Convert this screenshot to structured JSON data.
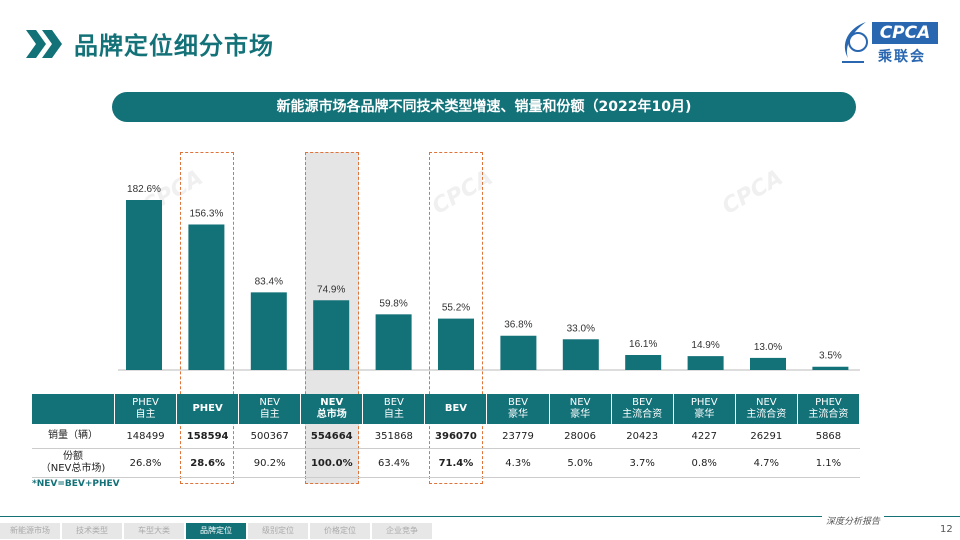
{
  "page": {
    "title": "品牌定位细分市场",
    "page_number": "12",
    "tagline": "深度分析报告"
  },
  "logo": {
    "en": "CPCA",
    "cn": "乘联会"
  },
  "subtitle": "新能源市场各品牌不同技术类型增速、销量和份额（2022年10月)",
  "colors": {
    "accent": "#137178",
    "highlight_border": "#e0733a",
    "logo_blue": "#2a67b1"
  },
  "chart_data": {
    "type": "bar",
    "title": "新能源市场各品牌不同技术类型增速、销量和份额（2022年10月)",
    "categories": [
      "PHEV 自主",
      "PHEV",
      "NEV 自主",
      "NEV 总市场",
      "BEV 自主",
      "BEV",
      "BEV 豪华",
      "NEV 豪华",
      "BEV 主流合资",
      "PHEV 豪华",
      "NEV 主流合资",
      "PHEV 主流合资"
    ],
    "values": [
      182.6,
      156.3,
      83.4,
      74.9,
      59.8,
      55.2,
      36.8,
      33.0,
      16.1,
      14.9,
      13.0,
      3.5
    ],
    "labels": [
      "182.6%",
      "156.3%",
      "83.4%",
      "74.9%",
      "59.8%",
      "55.2%",
      "36.8%",
      "33.0%",
      "16.1%",
      "14.9%",
      "13.0%",
      "3.5%"
    ],
    "unit": "%",
    "ylim": [
      0,
      200
    ]
  },
  "table": {
    "headers": [
      "",
      "PHEV\n自主",
      "PHEV",
      "NEV\n自主",
      "NEV\n总市场",
      "BEV\n自主",
      "BEV",
      "BEV\n豪华",
      "NEV\n豪华",
      "BEV\n主流合资",
      "PHEV\n豪华",
      "NEV\n主流合资",
      "PHEV\n主流合资"
    ],
    "bold_columns": [
      2,
      4,
      6
    ],
    "rows": [
      [
        "销量（辆）",
        "148499",
        "158594",
        "500367",
        "554664",
        "351868",
        "396070",
        "23779",
        "28006",
        "20423",
        "4227",
        "26291",
        "5868"
      ],
      [
        "份额\n（NEV总市场)",
        "26.8%",
        "28.6%",
        "90.2%",
        "100.0%",
        "63.4%",
        "71.4%",
        "4.3%",
        "5.0%",
        "3.7%",
        "0.8%",
        "4.7%",
        "1.1%"
      ]
    ]
  },
  "footnote": "*NEV=BEV+PHEV",
  "nav": {
    "items": [
      "新能源市场",
      "技术类型",
      "车型大类",
      "品牌定位",
      "级别定位",
      "价格定位",
      "企业竞争"
    ],
    "active_index": 3
  }
}
